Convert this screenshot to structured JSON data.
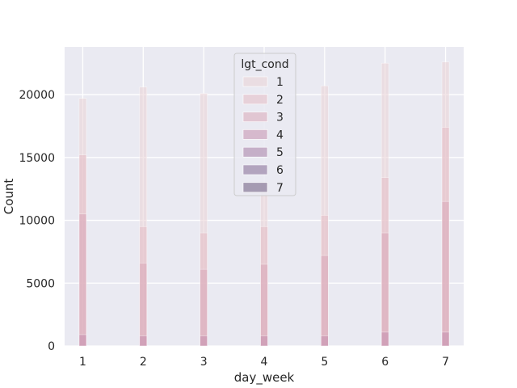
{
  "chart_data": {
    "type": "bar",
    "title": "",
    "xlabel": "day_week",
    "ylabel": "Count",
    "categories": [
      "1",
      "2",
      "3",
      "4",
      "5",
      "6",
      "7"
    ],
    "xticks": [
      "1",
      "2",
      "3",
      "4",
      "5",
      "6",
      "7"
    ],
    "yticks": [
      "0",
      "5000",
      "10000",
      "15000",
      "20000"
    ],
    "ylim": [
      0,
      23800
    ],
    "xlim": [
      0.7,
      7.3
    ],
    "grid": true,
    "legend": {
      "title": "lgt_cond",
      "position": "top-center",
      "entries": [
        "1",
        "2",
        "3",
        "4",
        "5",
        "6",
        "7"
      ]
    },
    "colors": [
      "#ead1d6",
      "#e3bcc5",
      "#d8a7b8",
      "#c48fae",
      "#a57ea6",
      "#836a94",
      "#6b5a7d"
    ],
    "series": [
      {
        "name": "1",
        "values": [
          19700,
          20600,
          20100,
          13000,
          20700,
          22500,
          22600
        ]
      },
      {
        "name": "2",
        "values": [
          15200,
          9500,
          9000,
          9500,
          10400,
          13400,
          17400
        ]
      },
      {
        "name": "3",
        "values": [
          10500,
          6600,
          6100,
          6500,
          7200,
          9000,
          11500
        ]
      },
      {
        "name": "4",
        "values": [
          900,
          800,
          800,
          800,
          800,
          1100,
          1100
        ]
      },
      {
        "name": "5",
        "values": [
          0,
          0,
          0,
          0,
          0,
          0,
          0
        ]
      },
      {
        "name": "6",
        "values": [
          0,
          0,
          0,
          0,
          0,
          0,
          0
        ]
      },
      {
        "name": "7",
        "values": [
          0,
          0,
          0,
          0,
          0,
          0,
          0
        ]
      }
    ]
  }
}
